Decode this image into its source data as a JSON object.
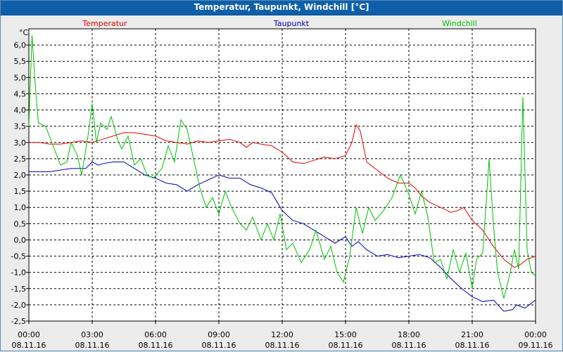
{
  "window": {
    "title": "Temperatur, Taupunkt, Windchill [°C]"
  },
  "chart_data": {
    "type": "line",
    "title": "Temperatur, Taupunkt, Windchill [°C]",
    "ylabel": "°C",
    "ylim": [
      -2.5,
      6.5
    ],
    "y_ticks": [
      "6,0",
      "5,5",
      "5,0",
      "4,5",
      "4,0",
      "3,5",
      "3,0",
      "2,5",
      "2,0",
      "1,5",
      "1,0",
      "0,5",
      "0,0",
      "-0,5",
      "-1,0",
      "-1,5",
      "-2,0",
      "-2,5"
    ],
    "x_ticks": [
      {
        "time": "00:00",
        "date": "08.11.16"
      },
      {
        "time": "03:00",
        "date": "08.11.16"
      },
      {
        "time": "06:00",
        "date": "08.11.16"
      },
      {
        "time": "09:00",
        "date": "08.11.16"
      },
      {
        "time": "12:00",
        "date": "08.11.16"
      },
      {
        "time": "15:00",
        "date": "08.11.16"
      },
      {
        "time": "18:00",
        "date": "08.11.16"
      },
      {
        "time": "21:00",
        "date": "08.11.16"
      },
      {
        "time": "00:00",
        "date": "09.11.16"
      }
    ],
    "xlim_hours": [
      0,
      24
    ],
    "grid": true,
    "legend": "top",
    "series": [
      {
        "name": "Temperatur",
        "color": "#e00000",
        "points": [
          [
            0,
            3.0
          ],
          [
            0.5,
            3.0
          ],
          [
            1,
            2.95
          ],
          [
            1.5,
            2.95
          ],
          [
            2,
            3.0
          ],
          [
            2.5,
            3.05
          ],
          [
            3,
            3.0
          ],
          [
            3.5,
            3.1
          ],
          [
            4,
            3.2
          ],
          [
            4.5,
            3.3
          ],
          [
            5,
            3.3
          ],
          [
            5.5,
            3.25
          ],
          [
            6,
            3.2
          ],
          [
            6.5,
            3.05
          ],
          [
            7,
            3.0
          ],
          [
            7.5,
            2.95
          ],
          [
            8,
            3.05
          ],
          [
            8.5,
            3.0
          ],
          [
            9,
            3.05
          ],
          [
            9.5,
            3.1
          ],
          [
            10,
            3.0
          ],
          [
            10.3,
            2.85
          ],
          [
            10.6,
            3.0
          ],
          [
            11,
            2.95
          ],
          [
            11.5,
            2.9
          ],
          [
            12,
            2.7
          ],
          [
            12.5,
            2.4
          ],
          [
            13,
            2.35
          ],
          [
            13.5,
            2.45
          ],
          [
            14,
            2.55
          ],
          [
            14.5,
            2.5
          ],
          [
            15,
            2.6
          ],
          [
            15.3,
            3.0
          ],
          [
            15.5,
            3.55
          ],
          [
            15.7,
            3.35
          ],
          [
            16,
            2.4
          ],
          [
            16.5,
            2.15
          ],
          [
            17,
            1.9
          ],
          [
            17.5,
            1.75
          ],
          [
            18,
            1.75
          ],
          [
            18.3,
            1.6
          ],
          [
            18.6,
            1.35
          ],
          [
            19,
            1.15
          ],
          [
            19.5,
            1.0
          ],
          [
            20,
            0.85
          ],
          [
            20.3,
            0.9
          ],
          [
            20.6,
            1.0
          ],
          [
            21,
            0.6
          ],
          [
            21.5,
            0.3
          ],
          [
            22,
            -0.2
          ],
          [
            22.5,
            -0.6
          ],
          [
            23,
            -0.85
          ],
          [
            23.3,
            -0.75
          ],
          [
            23.6,
            -0.6
          ],
          [
            24,
            -0.5
          ]
        ]
      },
      {
        "name": "Taupunkt",
        "color": "#0000b0",
        "points": [
          [
            0,
            2.1
          ],
          [
            1,
            2.1
          ],
          [
            2,
            2.2
          ],
          [
            2.7,
            2.2
          ],
          [
            3,
            2.4
          ],
          [
            3.3,
            2.3
          ],
          [
            3.5,
            2.35
          ],
          [
            4,
            2.4
          ],
          [
            4.5,
            2.4
          ],
          [
            5,
            2.2
          ],
          [
            5.5,
            2.0
          ],
          [
            6,
            1.9
          ],
          [
            6.5,
            1.75
          ],
          [
            7,
            1.7
          ],
          [
            7.5,
            1.5
          ],
          [
            8,
            1.7
          ],
          [
            8.5,
            1.85
          ],
          [
            9,
            2.0
          ],
          [
            9.5,
            1.9
          ],
          [
            10,
            1.9
          ],
          [
            10.5,
            1.7
          ],
          [
            11,
            1.6
          ],
          [
            11.5,
            1.45
          ],
          [
            12,
            0.9
          ],
          [
            12.5,
            0.6
          ],
          [
            13,
            0.5
          ],
          [
            13.5,
            0.3
          ],
          [
            14,
            0.1
          ],
          [
            14.5,
            -0.1
          ],
          [
            15,
            0.1
          ],
          [
            15.3,
            -0.2
          ],
          [
            15.6,
            -0.05
          ],
          [
            16,
            -0.3
          ],
          [
            16.5,
            -0.5
          ],
          [
            17,
            -0.45
          ],
          [
            17.5,
            -0.55
          ],
          [
            18,
            -0.5
          ],
          [
            18.5,
            -0.45
          ],
          [
            19,
            -0.55
          ],
          [
            19.5,
            -0.85
          ],
          [
            20,
            -1.2
          ],
          [
            20.5,
            -1.5
          ],
          [
            21,
            -1.75
          ],
          [
            21.5,
            -1.9
          ],
          [
            22,
            -1.85
          ],
          [
            22.5,
            -2.2
          ],
          [
            22.9,
            -2.15
          ],
          [
            23.1,
            -2.0
          ],
          [
            23.5,
            -2.1
          ],
          [
            24,
            -1.85
          ]
        ]
      },
      {
        "name": "Windchill",
        "color": "#00c000",
        "points": [
          [
            0,
            3.5
          ],
          [
            0.15,
            6.3
          ],
          [
            0.3,
            4.8
          ],
          [
            0.45,
            3.6
          ],
          [
            0.8,
            3.5
          ],
          [
            1.2,
            2.8
          ],
          [
            1.5,
            2.3
          ],
          [
            1.8,
            2.4
          ],
          [
            2.0,
            3.0
          ],
          [
            2.3,
            2.6
          ],
          [
            2.5,
            2.0
          ],
          [
            2.8,
            3.2
          ],
          [
            3.0,
            4.2
          ],
          [
            3.2,
            3.0
          ],
          [
            3.4,
            3.6
          ],
          [
            3.7,
            3.4
          ],
          [
            3.9,
            3.8
          ],
          [
            4.2,
            3.1
          ],
          [
            4.4,
            2.8
          ],
          [
            4.7,
            3.2
          ],
          [
            5.0,
            2.3
          ],
          [
            5.3,
            2.5
          ],
          [
            5.6,
            2.0
          ],
          [
            5.9,
            1.9
          ],
          [
            6.3,
            2.2
          ],
          [
            6.6,
            2.9
          ],
          [
            6.9,
            2.4
          ],
          [
            7.2,
            3.7
          ],
          [
            7.5,
            3.4
          ],
          [
            7.8,
            2.5
          ],
          [
            8.1,
            1.6
          ],
          [
            8.4,
            1.0
          ],
          [
            8.7,
            1.3
          ],
          [
            9.0,
            0.8
          ],
          [
            9.3,
            1.5
          ],
          [
            9.6,
            1.0
          ],
          [
            10.0,
            0.5
          ],
          [
            10.3,
            0.3
          ],
          [
            10.6,
            0.7
          ],
          [
            11.0,
            0.0
          ],
          [
            11.3,
            0.5
          ],
          [
            11.6,
            0.0
          ],
          [
            11.9,
            0.8
          ],
          [
            12.2,
            -0.3
          ],
          [
            12.5,
            -0.1
          ],
          [
            12.9,
            -0.7
          ],
          [
            13.3,
            -0.3
          ],
          [
            13.6,
            0.3
          ],
          [
            14.0,
            -0.6
          ],
          [
            14.3,
            -0.2
          ],
          [
            14.6,
            -1.0
          ],
          [
            14.9,
            -1.3
          ],
          [
            15.2,
            -0.5
          ],
          [
            15.5,
            1.0
          ],
          [
            15.8,
            0.2
          ],
          [
            16.1,
            1.0
          ],
          [
            16.4,
            0.6
          ],
          [
            16.8,
            0.9
          ],
          [
            17.2,
            1.3
          ],
          [
            17.6,
            2.0
          ],
          [
            18.0,
            1.4
          ],
          [
            18.3,
            0.8
          ],
          [
            18.6,
            1.5
          ],
          [
            18.9,
            0.7
          ],
          [
            19.2,
            -0.7
          ],
          [
            19.5,
            -0.6
          ],
          [
            19.8,
            -1.2
          ],
          [
            20.1,
            -0.3
          ],
          [
            20.4,
            -1.0
          ],
          [
            20.7,
            -0.4
          ],
          [
            21.0,
            -1.5
          ],
          [
            21.2,
            -0.6
          ],
          [
            21.5,
            -0.4
          ],
          [
            21.8,
            2.5
          ],
          [
            22.0,
            0.5
          ],
          [
            22.2,
            -1.0
          ],
          [
            22.5,
            -1.8
          ],
          [
            22.8,
            -1.0
          ],
          [
            23.0,
            -0.3
          ],
          [
            23.2,
            -0.9
          ],
          [
            23.4,
            4.4
          ],
          [
            23.6,
            -0.3
          ],
          [
            23.8,
            -1.0
          ],
          [
            24,
            -1.1
          ]
        ]
      }
    ]
  }
}
